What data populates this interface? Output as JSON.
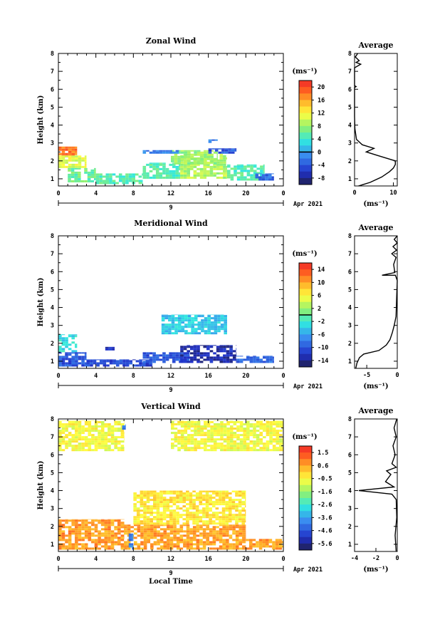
{
  "chart_data": [
    {
      "type": "heatmap",
      "title": "Zonal Wind",
      "ylabel": "Height (km)",
      "xlim": [
        0,
        24
      ],
      "ylim": [
        0.6,
        8
      ],
      "x_ticks": [
        "0",
        "4",
        "8",
        "12",
        "16",
        "20",
        "0"
      ],
      "y_ticks": [
        "1",
        "2",
        "3",
        "4",
        "5",
        "6",
        "7",
        "8"
      ],
      "date_label": "9",
      "date_suffix": "Apr 2021",
      "colorbar": {
        "unit": "(ms⁻¹)",
        "ticks": [
          "20",
          "16",
          "12",
          "8",
          "4",
          "0",
          "-4",
          "-8"
        ],
        "min": -10,
        "max": 22,
        "line_at": 0
      },
      "regions": [
        {
          "x": [
            0,
            2
          ],
          "y": [
            2.2,
            2.8
          ],
          "value": 18
        },
        {
          "x": [
            0,
            3
          ],
          "y": [
            1.6,
            2.3
          ],
          "value": 11
        },
        {
          "x": [
            1,
            4
          ],
          "y": [
            0.8,
            1.6
          ],
          "value": 6
        },
        {
          "x": [
            4,
            9
          ],
          "y": [
            0.7,
            1.3
          ],
          "value": 5
        },
        {
          "x": [
            9,
            13
          ],
          "y": [
            1.0,
            1.9
          ],
          "value": 5
        },
        {
          "x": [
            13,
            18
          ],
          "y": [
            1.0,
            2.4
          ],
          "value": 9
        },
        {
          "x": [
            18,
            22
          ],
          "y": [
            0.9,
            1.8
          ],
          "value": 5
        },
        {
          "x": [
            12,
            17
          ],
          "y": [
            1.8,
            2.6
          ],
          "value": 8
        },
        {
          "x": [
            9,
            13
          ],
          "y": [
            2.4,
            2.6
          ],
          "value": -2
        },
        {
          "x": [
            16,
            19
          ],
          "y": [
            2.4,
            2.7
          ],
          "value": -4
        },
        {
          "x": [
            16,
            17
          ],
          "y": [
            3.0,
            3.2
          ],
          "value": -2
        },
        {
          "x": [
            21,
            23
          ],
          "y": [
            0.9,
            1.3
          ],
          "value": -3
        }
      ],
      "side_profile": {
        "title": "Average",
        "xlabel": "(ms⁻¹)",
        "xlim": [
          0,
          11
        ],
        "x_ticks": [
          "0",
          "10"
        ],
        "points": [
          [
            1,
            0.6
          ],
          [
            4,
            0.8
          ],
          [
            7,
            1.1
          ],
          [
            9,
            1.4
          ],
          [
            10,
            1.6
          ],
          [
            10.5,
            1.8
          ],
          [
            10.5,
            2.0
          ],
          [
            9,
            2.1
          ],
          [
            6,
            2.3
          ],
          [
            3,
            2.5
          ],
          [
            5,
            2.7
          ],
          [
            2,
            2.9
          ],
          [
            0.5,
            3.2
          ],
          [
            0.1,
            3.8
          ],
          [
            0,
            4.5
          ],
          [
            0,
            5.5
          ],
          [
            0,
            6.1
          ],
          [
            0.4,
            6.15
          ],
          [
            0,
            6.2
          ],
          [
            0,
            7.2
          ],
          [
            1.6,
            7.4
          ],
          [
            0.4,
            7.5
          ],
          [
            1.2,
            7.6
          ],
          [
            0.2,
            7.8
          ],
          [
            0.8,
            8.0
          ]
        ]
      }
    },
    {
      "type": "heatmap",
      "title": "Meridional Wind",
      "ylabel": "Height (km)",
      "xlim": [
        0,
        24
      ],
      "ylim": [
        0.6,
        8
      ],
      "x_ticks": [
        "0",
        "4",
        "8",
        "12",
        "16",
        "20",
        "0"
      ],
      "y_ticks": [
        "1",
        "2",
        "3",
        "4",
        "5",
        "6",
        "7",
        "8"
      ],
      "date_label": "9",
      "date_suffix": "Apr 2021",
      "colorbar": {
        "unit": "(ms⁻¹)",
        "ticks": [
          "14",
          "10",
          "6",
          "2",
          "-2",
          "-6",
          "-10",
          "-14"
        ],
        "min": -16,
        "max": 16,
        "line_at": 0
      },
      "regions": [
        {
          "x": [
            0,
            2
          ],
          "y": [
            1.5,
            2.5
          ],
          "value": -3
        },
        {
          "x": [
            0,
            3
          ],
          "y": [
            0.7,
            1.5
          ],
          "value": -10
        },
        {
          "x": [
            3,
            10
          ],
          "y": [
            0.7,
            1.1
          ],
          "value": -11
        },
        {
          "x": [
            9,
            14
          ],
          "y": [
            0.9,
            1.5
          ],
          "value": -10
        },
        {
          "x": [
            13,
            19
          ],
          "y": [
            0.9,
            1.9
          ],
          "value": -13
        },
        {
          "x": [
            19,
            23
          ],
          "y": [
            0.9,
            1.3
          ],
          "value": -9
        },
        {
          "x": [
            11,
            18
          ],
          "y": [
            2.5,
            3.6
          ],
          "value": -4
        },
        {
          "x": [
            5,
            6
          ],
          "y": [
            1.6,
            1.8
          ],
          "value": -12
        }
      ],
      "side_profile": {
        "title": "Average",
        "xlabel": "(ms⁻¹)",
        "xlim": [
          -7,
          0
        ],
        "x_ticks": [
          "-5",
          "0"
        ],
        "points": [
          [
            -6.8,
            0.6
          ],
          [
            -6.6,
            0.9
          ],
          [
            -6.2,
            1.2
          ],
          [
            -5.5,
            1.4
          ],
          [
            -3,
            1.6
          ],
          [
            -1.8,
            1.9
          ],
          [
            -1.2,
            2.2
          ],
          [
            -0.8,
            2.6
          ],
          [
            -0.5,
            3.0
          ],
          [
            -0.2,
            3.5
          ],
          [
            -0.1,
            4.5
          ],
          [
            0,
            5.5
          ],
          [
            -0.3,
            5.8
          ],
          [
            -2.5,
            5.8
          ],
          [
            -0.4,
            5.95
          ],
          [
            -0.6,
            6.4
          ],
          [
            -0.2,
            6.8
          ],
          [
            -0.9,
            7.0
          ],
          [
            -0.1,
            7.2
          ],
          [
            -0.7,
            7.4
          ],
          [
            0,
            7.6
          ],
          [
            -0.5,
            7.8
          ],
          [
            0,
            8.0
          ]
        ]
      }
    },
    {
      "type": "heatmap",
      "title": "Vertical Wind",
      "ylabel": "Height (km)",
      "xlabel": "Local Time",
      "xlim": [
        0,
        24
      ],
      "ylim": [
        0.6,
        8
      ],
      "x_ticks": [
        "0",
        "4",
        "8",
        "12",
        "16",
        "20",
        "0"
      ],
      "y_ticks": [
        "1",
        "2",
        "3",
        "4",
        "5",
        "6",
        "7",
        "8"
      ],
      "date_label": "9",
      "date_suffix": "Apr 2021",
      "colorbar": {
        "unit": "(ms⁻¹)",
        "ticks": [
          "1.5",
          "0.6",
          "-0.5",
          "-1.6",
          "-2.6",
          "-3.6",
          "-4.6",
          "-5.6"
        ],
        "min": -6,
        "max": 2,
        "line_at": null
      },
      "regions": [
        {
          "x": [
            0,
            7
          ],
          "y": [
            0.7,
            2.4
          ],
          "value": 0.6
        },
        {
          "x": [
            7,
            20
          ],
          "y": [
            0.7,
            2.1
          ],
          "value": 0.5
        },
        {
          "x": [
            20,
            24
          ],
          "y": [
            0.7,
            1.3
          ],
          "value": 0.6
        },
        {
          "x": [
            8,
            20
          ],
          "y": [
            2.1,
            4.0
          ],
          "value": -0.3
        },
        {
          "x": [
            0,
            7
          ],
          "y": [
            6.2,
            7.9
          ],
          "value": -0.6
        },
        {
          "x": [
            12,
            24
          ],
          "y": [
            6.2,
            7.9
          ],
          "value": -0.6
        },
        {
          "x": [
            7.5,
            8
          ],
          "y": [
            0.7,
            1.6
          ],
          "value": -4
        },
        {
          "x": [
            6.8,
            7.2
          ],
          "y": [
            7.4,
            7.7
          ],
          "value": -4
        }
      ],
      "side_profile": {
        "title": "Average",
        "xlabel": "(ms⁻¹)",
        "xlim": [
          -4,
          0
        ],
        "x_ticks": [
          "-4",
          "-2",
          "0"
        ],
        "points": [
          [
            -0.1,
            0.6
          ],
          [
            -0.2,
            1.5
          ],
          [
            -0.05,
            2.5
          ],
          [
            -0.1,
            3.5
          ],
          [
            -0.5,
            3.8
          ],
          [
            -3.6,
            4.0
          ],
          [
            -0.3,
            4.2
          ],
          [
            -1.1,
            4.5
          ],
          [
            -0.6,
            4.9
          ],
          [
            -1.0,
            5.1
          ],
          [
            -0.1,
            5.3
          ],
          [
            -0.5,
            5.5
          ],
          [
            -0.2,
            6.0
          ],
          [
            -0.4,
            6.5
          ],
          [
            -0.1,
            7.0
          ],
          [
            -0.3,
            7.5
          ],
          [
            -0.05,
            8.0
          ]
        ]
      }
    }
  ]
}
